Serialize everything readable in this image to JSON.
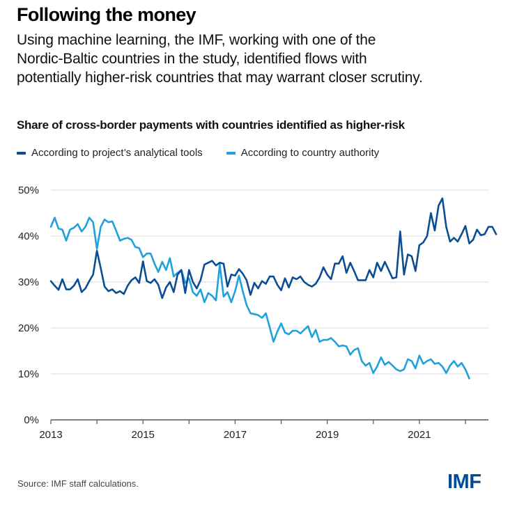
{
  "header": {
    "title": "Following the money",
    "subtitle_lines": [
      "Using machine learning, the IMF, working with one of the",
      "Nordic-Baltic countries in the study, identified flows with",
      "potentially higher-risk countries that may warrant closer scrutiny."
    ]
  },
  "footer": {
    "source": "Source: IMF staff calculations.",
    "logo": "IMF"
  },
  "colors": {
    "dark_series": "#0b4d94",
    "light_series": "#1ea1dc",
    "grid": "#d9d9d9",
    "axis": "#555555",
    "logo": "#004c97"
  },
  "chart_data": {
    "type": "line",
    "title": "Share of cross-border payments with countries identified as higher-risk",
    "xlabel": "",
    "ylabel": "",
    "x_start": "2013-01",
    "frequency": "monthly",
    "xlim": [
      2013,
      2022.5
    ],
    "ylim": [
      0,
      50
    ],
    "y_ticks": [
      0,
      10,
      20,
      30,
      40,
      50
    ],
    "y_tick_labels": [
      "0%",
      "10%",
      "20%",
      "30%",
      "40%",
      "50%"
    ],
    "x_ticks": [
      2013,
      2014,
      2015,
      2016,
      2017,
      2018,
      2019,
      2020,
      2021,
      2022
    ],
    "x_tick_labels": [
      "2013",
      "",
      "2015",
      "",
      "2017",
      "",
      "2019",
      "",
      "2021",
      ""
    ],
    "grid": true,
    "legend_position": "top-left",
    "series": [
      {
        "name": "According to project’s analytical tools",
        "color": "#0b4d94",
        "values": [
          30.2,
          29.2,
          28.3,
          30.6,
          28.4,
          28.4,
          29.2,
          30.6,
          27.8,
          28.6,
          30.2,
          31.6,
          36.8,
          33.0,
          29.0,
          28.0,
          28.4,
          27.6,
          28.0,
          27.4,
          29.2,
          30.4,
          31.0,
          29.8,
          34.5,
          30.2,
          29.8,
          30.6,
          29.4,
          26.5,
          28.8,
          30.0,
          27.8,
          31.6,
          32.6,
          27.6,
          32.6,
          30.0,
          28.6,
          30.4,
          33.8,
          34.2,
          34.6,
          33.6,
          34.2,
          34.0,
          29.0,
          31.6,
          31.4,
          32.8,
          31.8,
          30.4,
          27.2,
          29.8,
          28.6,
          30.2,
          29.6,
          31.2,
          31.2,
          29.4,
          28.2,
          30.8,
          28.8,
          31.0,
          30.6,
          31.2,
          30.0,
          29.4,
          29.0,
          29.6,
          31.0,
          33.2,
          31.6,
          30.6,
          34.0,
          34.0,
          35.6,
          32.0,
          34.2,
          32.4,
          30.4,
          30.4,
          30.4,
          32.6,
          31.0,
          34.2,
          32.4,
          34.4,
          32.6,
          30.8,
          31.0,
          41.0,
          31.6,
          36.0,
          35.6,
          32.4,
          38.0,
          38.6,
          40.0,
          45.0,
          41.2,
          46.6,
          48.2,
          42.0,
          38.8,
          39.6,
          38.8,
          40.4,
          42.2,
          38.4,
          39.2,
          41.4,
          40.2,
          40.4,
          42.0,
          42.0,
          40.4
        ]
      },
      {
        "name": "According to country authority",
        "color": "#1ea1dc",
        "values": [
          42.0,
          44.0,
          41.6,
          41.4,
          39.0,
          41.4,
          41.8,
          42.6,
          41.0,
          42.0,
          44.0,
          43.0,
          37.2,
          42.0,
          43.6,
          43.0,
          43.2,
          41.2,
          39.0,
          39.4,
          39.6,
          39.2,
          37.6,
          37.4,
          35.4,
          36.2,
          36.2,
          34.0,
          32.2,
          34.4,
          32.6,
          35.2,
          31.2,
          32.0,
          32.6,
          29.8,
          30.8,
          27.8,
          27.0,
          28.4,
          25.6,
          27.6,
          27.0,
          26.0,
          33.8,
          26.8,
          27.8,
          25.6,
          28.0,
          31.4,
          28.0,
          25.0,
          23.2,
          23.0,
          22.8,
          22.2,
          23.2,
          20.2,
          17.0,
          19.2,
          21.0,
          19.0,
          18.6,
          19.4,
          19.4,
          18.8,
          19.6,
          20.4,
          18.0,
          19.6,
          17.0,
          17.4,
          17.4,
          17.8,
          17.0,
          16.0,
          16.2,
          16.0,
          14.2,
          15.2,
          15.6,
          12.8,
          11.8,
          12.4,
          10.2,
          11.6,
          13.6,
          12.0,
          12.6,
          11.8,
          11.0,
          10.6,
          11.0,
          13.2,
          12.8,
          11.2,
          14.0,
          12.2,
          12.8,
          13.2,
          12.2,
          12.4,
          11.6,
          10.2,
          11.8,
          12.8,
          11.6,
          12.4,
          11.0,
          9.0
        ]
      }
    ]
  }
}
